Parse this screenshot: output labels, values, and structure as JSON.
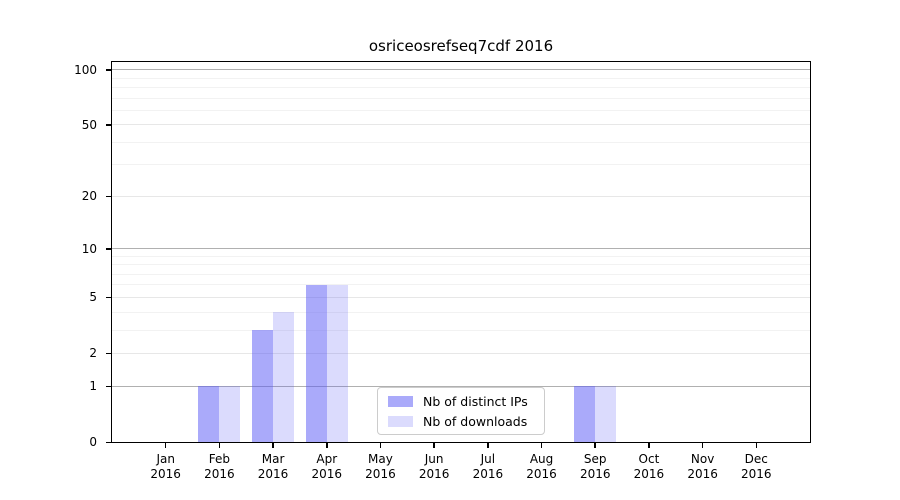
{
  "figure": {
    "background": "#ffffff"
  },
  "chart_data": {
    "type": "bar",
    "title": "osriceosrefseq7cdf 2016",
    "categories": [
      "Jan",
      "Feb",
      "Mar",
      "Apr",
      "May",
      "Jun",
      "Jul",
      "Aug",
      "Sep",
      "Oct",
      "Nov",
      "Dec"
    ],
    "x_tick_year": "2016",
    "series": [
      {
        "name": "Nb of distinct IPs",
        "values": [
          0,
          1,
          3,
          6,
          0,
          0,
          0,
          0,
          1,
          0,
          0,
          0
        ],
        "alpha": 0.5
      },
      {
        "name": "Nb of downloads",
        "values": [
          0,
          1,
          4,
          6,
          0,
          0,
          0,
          0,
          1,
          0,
          0,
          0
        ],
        "alpha": 0.21
      }
    ],
    "bar_base_color": "#5555f5",
    "y_scale": "log1p",
    "ylim": [
      0,
      110
    ],
    "y_ticks": [
      0,
      1,
      2,
      5,
      10,
      20,
      50,
      100
    ],
    "y_decade_gridlines": [
      1,
      10,
      100
    ],
    "y_major_gridlines": [
      2,
      5,
      20,
      50
    ],
    "y_minor_gridlines": [
      3,
      4,
      6,
      7,
      8,
      9,
      30,
      40,
      60,
      70,
      80,
      90
    ],
    "grid": true,
    "legend_position": "inside bottom-center",
    "colors": {
      "spine": "#000000",
      "decade_grid": "#b0b0b0",
      "major_grid": "#e7e7e7",
      "minor_grid": "#f2f2f2",
      "legend_border": "#cccccc",
      "bar_dark_blended": "#aaaafa",
      "bar_light_blended": "#dbdbfb"
    }
  }
}
